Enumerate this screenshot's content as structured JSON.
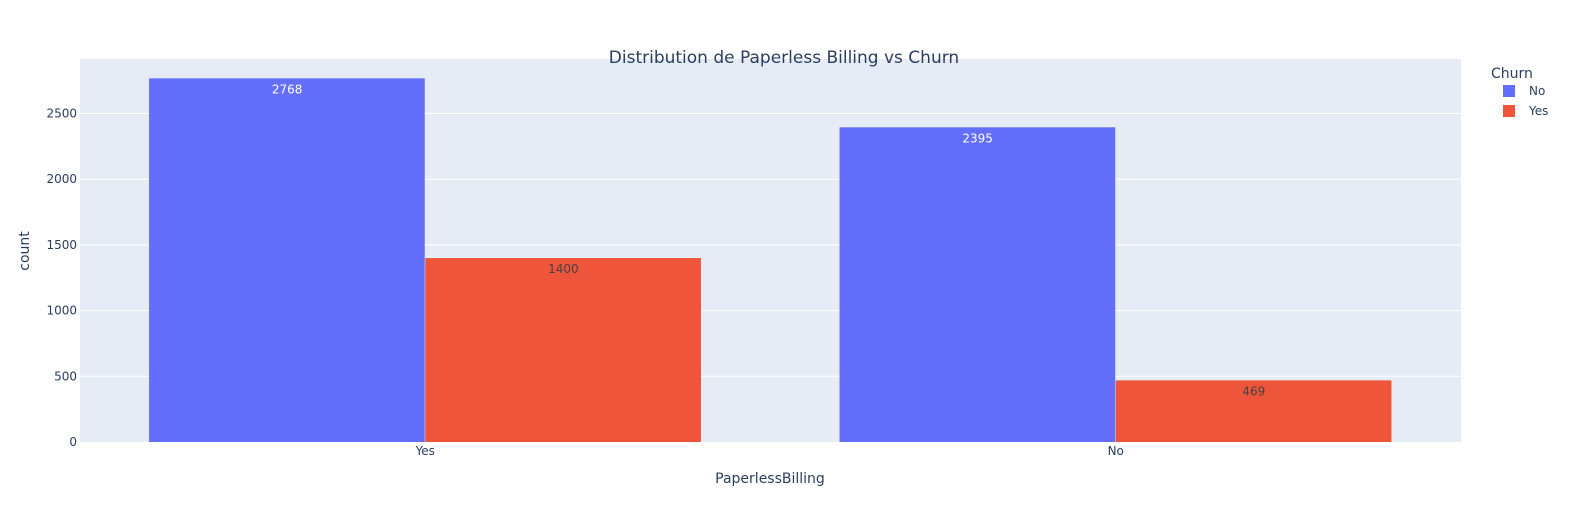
{
  "chart_data": {
    "type": "bar",
    "title": "Distribution de Paperless Billing vs Churn",
    "xlabel": "PaperlessBilling",
    "ylabel": "count",
    "categories": [
      "Yes",
      "No"
    ],
    "series": [
      {
        "name": "No",
        "values": [
          2768,
          2395
        ],
        "color": "#636efa",
        "label_color": "#ffffff"
      },
      {
        "name": "Yes",
        "values": [
          1400,
          469
        ],
        "color": "#ef553b",
        "label_color": "#444444"
      }
    ],
    "ylim": [
      0,
      2915
    ],
    "yticks": [
      0,
      500,
      1000,
      1500,
      2000,
      2500
    ],
    "grid": true,
    "legend": {
      "title": "Churn",
      "placement": "top-right"
    },
    "plot_background": "#e5ecf6",
    "grid_color": "#ffffff"
  }
}
